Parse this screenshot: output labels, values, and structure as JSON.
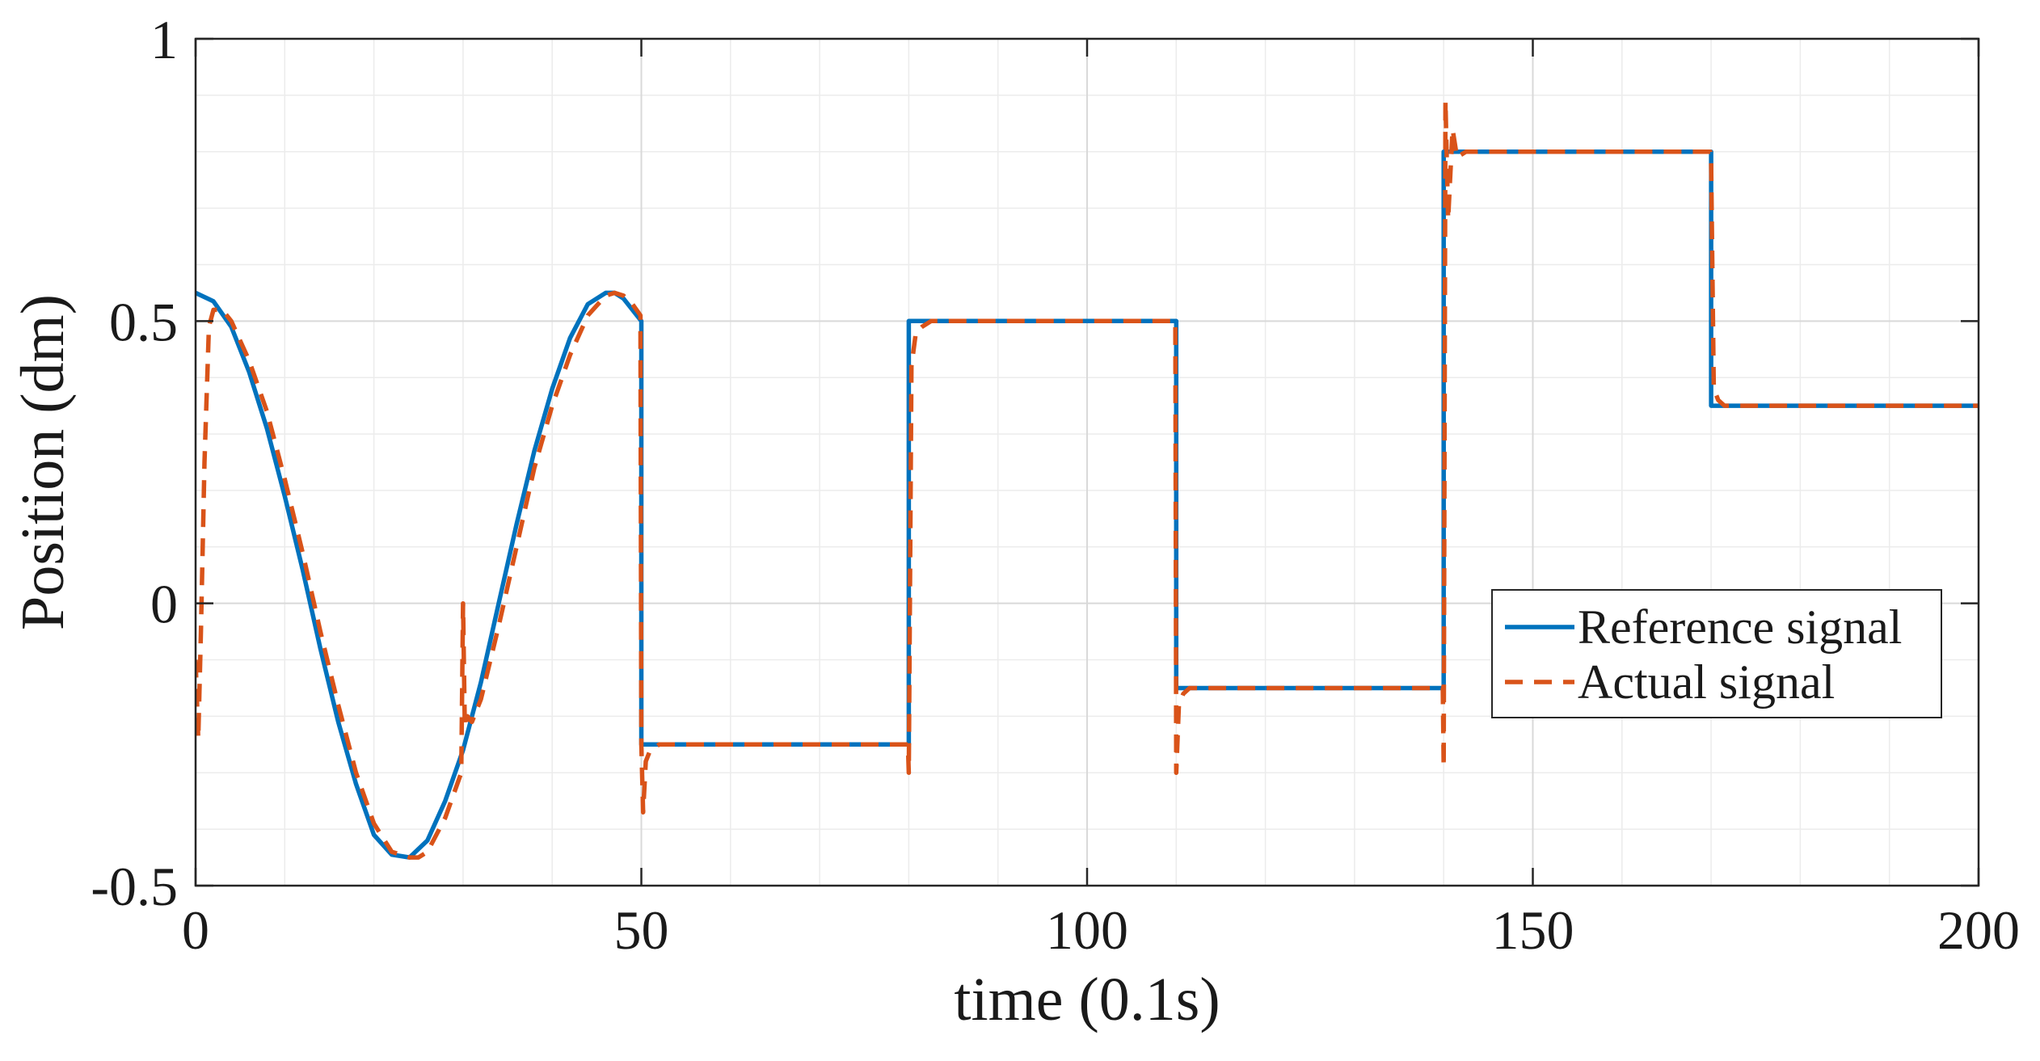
{
  "chart_data": {
    "type": "line",
    "title": "",
    "xlabel": "time (0.1s)",
    "ylabel": "Position (dm)",
    "xlim": [
      0,
      200
    ],
    "ylim": [
      -0.5,
      1
    ],
    "xticks": [
      0,
      50,
      100,
      150,
      200
    ],
    "xtick_labels": [
      "0",
      "50",
      "100",
      "150",
      "200"
    ],
    "yticks": [
      -0.5,
      0,
      0.5,
      1
    ],
    "ytick_labels": [
      "-0.5",
      "0",
      "0.5",
      "1"
    ],
    "grid": true,
    "minor_grid": true,
    "legend_position": "center-right",
    "series": [
      {
        "name": "Reference signal",
        "color": "#0072BD",
        "style": "solid",
        "x": [
          0,
          2,
          4,
          6,
          8,
          10,
          12,
          14,
          16,
          18,
          20,
          22,
          24,
          26,
          28,
          30,
          32,
          34,
          36,
          38,
          40,
          42,
          44,
          46,
          47,
          48,
          49,
          50,
          50,
          80,
          80,
          110,
          110,
          140,
          140,
          170,
          170,
          200
        ],
        "y": [
          0.55,
          0.535,
          0.49,
          0.41,
          0.31,
          0.19,
          0.06,
          -0.08,
          -0.21,
          -0.32,
          -0.41,
          -0.445,
          -0.45,
          -0.42,
          -0.35,
          -0.26,
          -0.14,
          0.0,
          0.14,
          0.27,
          0.38,
          0.47,
          0.53,
          0.55,
          0.55,
          0.54,
          0.52,
          0.5,
          -0.25,
          -0.25,
          0.5,
          0.5,
          -0.15,
          -0.15,
          0.8,
          0.8,
          0.35,
          0.35
        ]
      },
      {
        "name": "Actual signal",
        "color": "#D95319",
        "style": "dashed",
        "x": [
          0,
          0.3,
          0.6,
          1,
          1.5,
          2,
          3,
          4,
          6,
          8,
          10,
          12,
          14,
          16,
          18,
          20,
          22,
          24,
          25,
          26,
          28,
          29.8,
          30,
          30.2,
          30.5,
          31,
          32,
          34,
          36,
          38,
          40,
          42,
          44,
          46,
          47,
          48,
          49,
          49.9,
          50,
          50.2,
          50.5,
          51,
          52,
          79.9,
          80,
          80.3,
          80.8,
          81.5,
          82.5,
          109.9,
          110,
          110.3,
          110.8,
          111.5,
          112.5,
          139.9,
          140,
          140.2,
          140.5,
          141,
          141.5,
          142.5,
          169.9,
          170,
          170.3,
          170.8,
          171.5,
          200
        ],
        "y": [
          -0.1,
          -0.24,
          -0.05,
          0.25,
          0.49,
          0.52,
          0.52,
          0.5,
          0.43,
          0.34,
          0.22,
          0.09,
          -0.05,
          -0.18,
          -0.3,
          -0.39,
          -0.44,
          -0.45,
          -0.45,
          -0.44,
          -0.38,
          -0.3,
          0.0,
          -0.22,
          -0.2,
          -0.21,
          -0.17,
          -0.04,
          0.1,
          0.24,
          0.35,
          0.44,
          0.51,
          0.545,
          0.55,
          0.545,
          0.53,
          0.51,
          -0.25,
          -0.37,
          -0.28,
          -0.26,
          -0.25,
          -0.25,
          -0.3,
          0.42,
          0.48,
          0.49,
          0.5,
          0.5,
          -0.3,
          -0.18,
          -0.16,
          -0.15,
          -0.15,
          -0.15,
          -0.29,
          0.89,
          0.68,
          0.84,
          0.79,
          0.8,
          0.8,
          0.78,
          0.38,
          0.36,
          0.35,
          0.35
        ]
      }
    ]
  }
}
